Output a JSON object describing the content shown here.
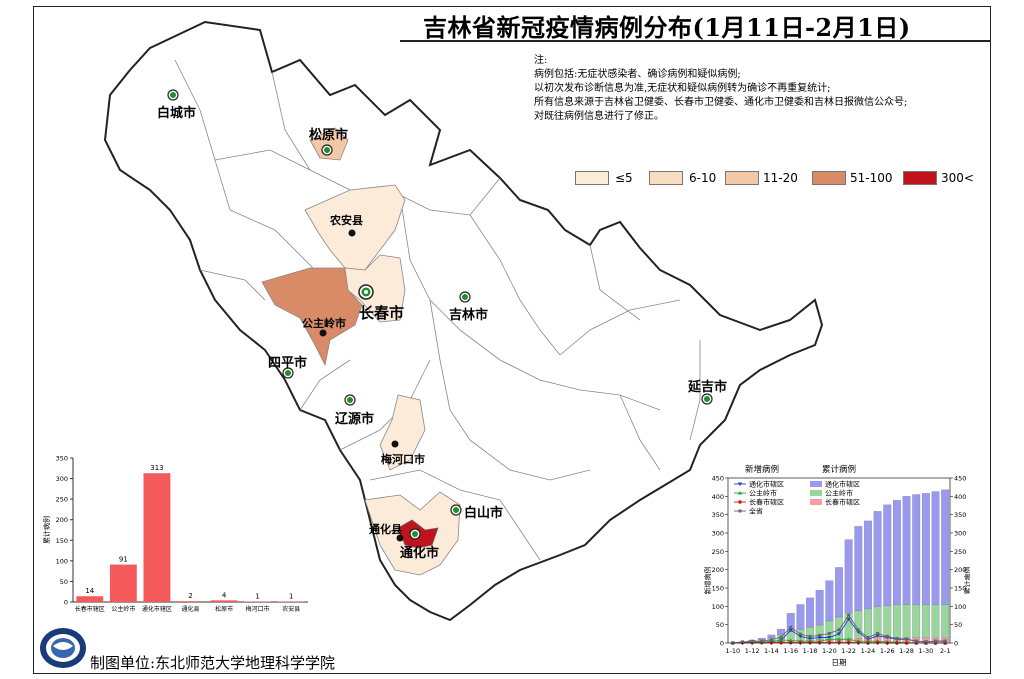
{
  "title": "吉林省新冠疫情病例分布(1月11日-2月1日)",
  "notes": [
    "注:",
    "病例包括:无症状感染者、确诊病例和疑似病例;",
    "以初次发布诊断信息为准,无症状和疑似病例转为确诊不再重复统计;",
    "所有信息来源于吉林省卫健委、长春市卫健委、通化市卫健委和吉林日报微信公众号;",
    "对既往病例信息进行了修正。"
  ],
  "legend": {
    "items": [
      {
        "label": "≤5",
        "color": "#fdebd9"
      },
      {
        "label": "6-10",
        "color": "#f8dcc1"
      },
      {
        "label": "11-20",
        "color": "#f3c8a6"
      },
      {
        "label": "51-100",
        "color": "#d98a66"
      },
      {
        "label": "300<",
        "color": "#c0131c"
      }
    ]
  },
  "cities": {
    "baicheng": "白城市",
    "songyuan": "松原市",
    "nongan": "农安县",
    "changchun": "长春市",
    "jilin": "吉林市",
    "gongzhuling": "公主岭市",
    "siping": "四平市",
    "liaoyuan": "辽源市",
    "meihekou": "梅河口市",
    "yanji": "延吉市",
    "baishan": "白山市",
    "tonghua_county": "通化县",
    "tonghua": "通化市"
  },
  "footer": "制图单位:东北师范大学地理科学学院",
  "chart_data": [
    {
      "type": "bar",
      "categories": [
        "长春市辖区",
        "公主岭市",
        "通化市辖区",
        "通化县",
        "松原市",
        "梅河口市",
        "农安县"
      ],
      "values": [
        14,
        91,
        313,
        2,
        4,
        1,
        1
      ],
      "ylabel": "累计病例",
      "ylim": [
        0,
        350
      ],
      "yticks": [
        0,
        50,
        100,
        150,
        200,
        250,
        300,
        350
      ],
      "color": "#f45a5a"
    },
    {
      "type": "bar",
      "x": [
        "1-10",
        "1-11",
        "1-12",
        "1-13",
        "1-14",
        "1-15",
        "1-16",
        "1-17",
        "1-18",
        "1-19",
        "1-20",
        "1-21",
        "1-22",
        "1-23",
        "1-24",
        "1-25",
        "1-26",
        "1-27",
        "1-28",
        "1-29",
        "1-30",
        "1-31",
        "2-1"
      ],
      "xticks": [
        "1-10",
        "1-12",
        "1-14",
        "1-16",
        "1-18",
        "1-20",
        "1-22",
        "1-24",
        "1-26",
        "1-28",
        "1-30",
        "2-1"
      ],
      "xlabel": "日期",
      "ylabel_left": "新增病例",
      "ylabel_right": "累计病例",
      "ylim": [
        0,
        450
      ],
      "yticks": [
        0,
        50,
        100,
        150,
        200,
        250,
        300,
        350,
        400,
        450
      ],
      "legend_new_title": "新增病例",
      "legend_cum_title": "累计病例",
      "series_stacked": [
        {
          "name": "通化市辖区",
          "color": "#9999ee",
          "values": [
            0,
            0,
            2,
            4,
            8,
            15,
            50,
            68,
            80,
            95,
            110,
            135,
            200,
            230,
            240,
            260,
            275,
            285,
            295,
            300,
            303,
            308,
            313
          ]
        },
        {
          "name": "公主岭市",
          "color": "#99d699",
          "values": [
            0,
            2,
            4,
            6,
            10,
            18,
            25,
            30,
            35,
            40,
            50,
            60,
            70,
            75,
            80,
            85,
            88,
            90,
            91,
            91,
            91,
            91,
            91
          ]
        },
        {
          "name": "长春市辖区",
          "color": "#f4a0a0",
          "values": [
            0,
            1,
            2,
            3,
            4,
            5,
            6,
            7,
            8,
            9,
            10,
            11,
            12,
            13,
            13,
            14,
            14,
            14,
            14,
            14,
            14,
            14,
            14
          ]
        }
      ],
      "series_lines": [
        {
          "name": "通化市辖区",
          "color": "#1f3fcc",
          "marker": "triangle-down",
          "values": [
            0,
            0,
            2,
            2,
            4,
            7,
            35,
            18,
            12,
            15,
            15,
            25,
            65,
            30,
            10,
            20,
            15,
            10,
            10,
            5,
            3,
            5,
            5
          ]
        },
        {
          "name": "公主岭市",
          "color": "#22aa22",
          "marker": "triangle-up",
          "values": [
            0,
            2,
            2,
            2,
            4,
            8,
            7,
            5,
            5,
            5,
            10,
            10,
            10,
            5,
            5,
            5,
            3,
            2,
            1,
            0,
            0,
            0,
            0
          ]
        },
        {
          "name": "长春市辖区",
          "color": "#dd1111",
          "marker": "circle",
          "values": [
            0,
            1,
            1,
            1,
            1,
            1,
            1,
            1,
            1,
            1,
            1,
            1,
            1,
            1,
            0,
            1,
            0,
            0,
            0,
            0,
            0,
            0,
            0
          ]
        },
        {
          "name": "全省",
          "color": "#666666",
          "marker": "square",
          "values": [
            0,
            3,
            5,
            5,
            9,
            16,
            43,
            24,
            18,
            21,
            26,
            36,
            76,
            36,
            15,
            26,
            18,
            12,
            11,
            5,
            3,
            5,
            5
          ]
        }
      ]
    }
  ]
}
